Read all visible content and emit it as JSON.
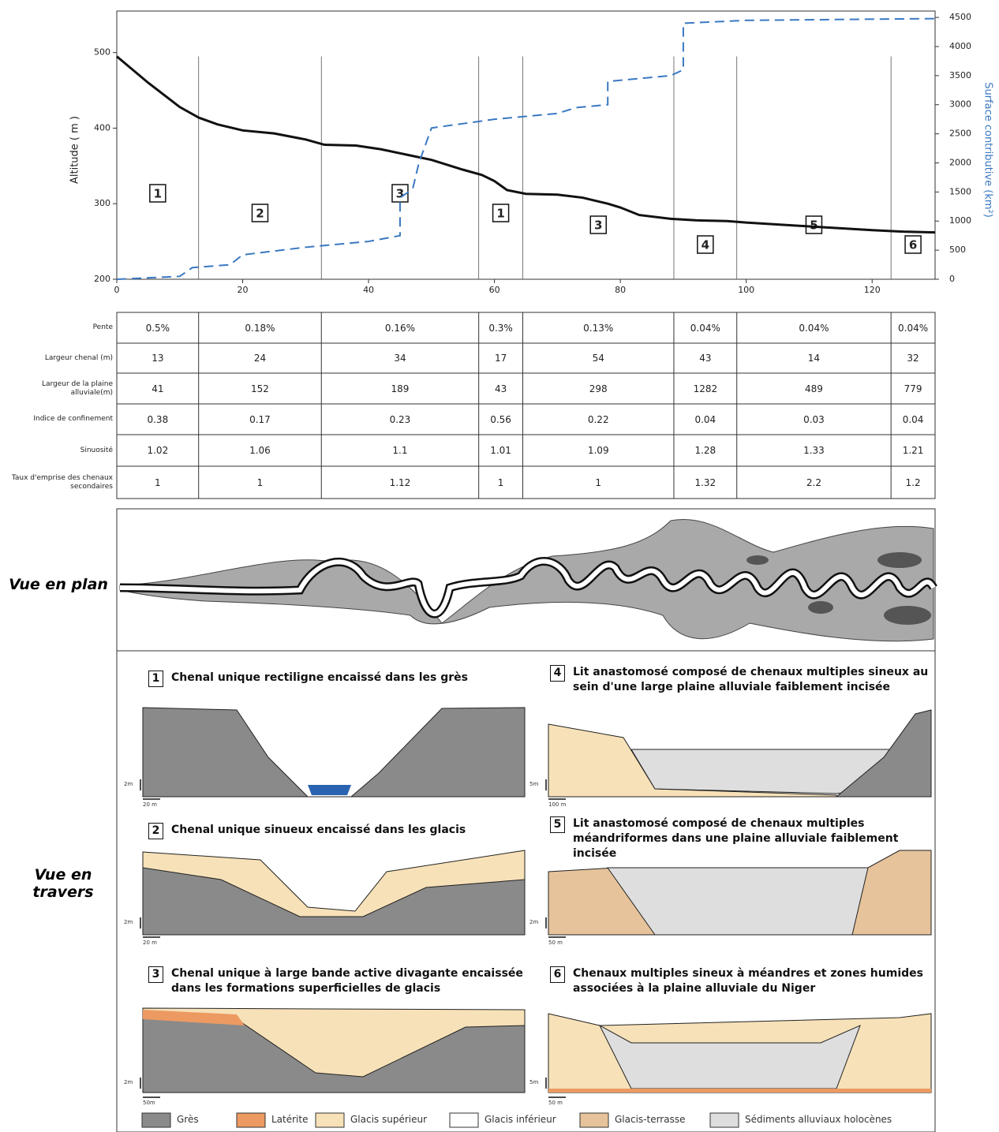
{
  "chart_data": {
    "type": "line",
    "ylabel": "Altitude ( m )",
    "y2label": "Surface contributive (km²)",
    "xlim": [
      0,
      130
    ],
    "xticks": [
      0,
      20,
      40,
      60,
      80,
      100,
      120
    ],
    "ylim": [
      200,
      555
    ],
    "yticks": [
      200,
      300,
      400,
      500
    ],
    "y2lim": [
      0,
      4610
    ],
    "y2ticks": [
      0,
      500,
      1000,
      1500,
      2000,
      2500,
      3000,
      3500,
      4000,
      4500
    ],
    "series": [
      {
        "color": "#111111",
        "axis": "y",
        "x": [
          0,
          5,
          10,
          13,
          16,
          20,
          25,
          30,
          33,
          38,
          42,
          46,
          50,
          55,
          58,
          60,
          62,
          65,
          70,
          74,
          78,
          80,
          83,
          88,
          92,
          97,
          100,
          110,
          120,
          125,
          130
        ],
        "values": [
          495,
          460,
          428,
          414,
          405,
          397,
          393,
          385,
          378,
          377,
          372,
          365,
          358,
          345,
          338,
          330,
          318,
          313,
          312,
          308,
          300,
          295,
          285,
          280,
          278,
          277,
          275,
          270,
          265,
          263,
          262
        ]
      },
      {
        "color": "#3a78c2",
        "axis": "y2",
        "dashed": true,
        "x": [
          0,
          10,
          12,
          18,
          20,
          30,
          40,
          45,
          45,
          47,
          48,
          50,
          60,
          70,
          73,
          78,
          78,
          88,
          90,
          90,
          100,
          130
        ],
        "values": [
          0,
          50,
          200,
          250,
          420,
          550,
          650,
          750,
          1400,
          1550,
          2000,
          2600,
          2750,
          2850,
          2950,
          3000,
          3400,
          3500,
          3600,
          4400,
          4450,
          4480
        ]
      }
    ],
    "reach_boundaries": [
      13,
      32.5,
      57.5,
      64.5,
      88.5,
      98.5,
      123
    ],
    "reach_labels": [
      "1",
      "2",
      "3",
      "1",
      "3",
      "4",
      "5",
      "6"
    ]
  },
  "table": {
    "row_headers": [
      "Pente",
      "Largeur chenal (m)",
      "Largeur de la plaine alluviale(m)",
      "Indice de confinement",
      "Sinuosité",
      "Taux d'emprise des chenaux secondaires"
    ],
    "rows": [
      [
        "0.5%",
        "0.18%",
        "0.16%",
        "0.3%",
        "0.13%",
        "0.04%",
        "0.04%",
        "0.04%"
      ],
      [
        "13",
        "24",
        "34",
        "17",
        "54",
        "43",
        "14",
        "32"
      ],
      [
        "41",
        "152",
        "189",
        "43",
        "298",
        "1282",
        "489",
        "779"
      ],
      [
        "0.38",
        "0.17",
        "0.23",
        "0.56",
        "0.22",
        "0.04",
        "0.03",
        "0.04"
      ],
      [
        "1.02",
        "1.06",
        "1.1",
        "1.01",
        "1.09",
        "1.28",
        "1.33",
        "1.21"
      ],
      [
        "1",
        "1",
        "1.12",
        "1",
        "1",
        "1.32",
        "2.2",
        "1.2"
      ]
    ]
  },
  "views": {
    "plan": "Vue en plan",
    "cross": "Vue en travers"
  },
  "sections": [
    {
      "number": "1",
      "title": "Chenal unique rectiligne encaissé dans les grès",
      "scale_v": "2m",
      "scale_h": "20 m"
    },
    {
      "number": "2",
      "title": "Chenal unique sinueux encaissé dans les glacis",
      "scale_v": "2m",
      "scale_h": "20 m"
    },
    {
      "number": "3",
      "title": "Chenal unique à large bande active divagante encaissée dans les formations superficielles de glacis",
      "scale_v": "2m",
      "scale_h": "50m"
    },
    {
      "number": "4",
      "title": "Lit anastomosé composé de chenaux multiples sineux au sein d'une large plaine alluviale faiblement incisée",
      "scale_v": "5m",
      "scale_h": "100 m"
    },
    {
      "number": "5",
      "title": "Lit anastomosé composé de chenaux multiples méandriformes dans une plaine alluviale faiblement incisée",
      "scale_v": "2m",
      "scale_h": "50 m"
    },
    {
      "number": "6",
      "title": "Chenaux multiples sineux à méandres et zones humides associées à la plaine alluviale du Niger",
      "scale_v": "5m",
      "scale_h": "50 m"
    }
  ],
  "legend": [
    {
      "label": "Grès",
      "color": "#8a8a8a"
    },
    {
      "label": "Latérite",
      "color": "#ec9a62"
    },
    {
      "label": "Glacis supérieur",
      "color": "#f7e1b8"
    },
    {
      "label": "Glacis inférieur",
      "color": "#ffffff"
    },
    {
      "label": "Glacis-terrasse",
      "color": "#e6c39a"
    },
    {
      "label": "Sédiments alluviaux holocènes",
      "color": "#dedede"
    }
  ]
}
